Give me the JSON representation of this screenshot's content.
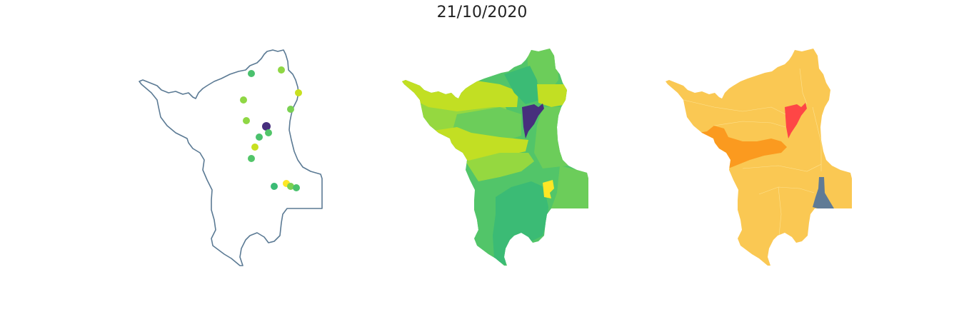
{
  "title": "21/10/2020",
  "panels": [
    {
      "name": "points-map",
      "outline_color": "#5b7a94",
      "points": [
        {
          "color": "#4ac16d"
        },
        {
          "color": "#8fd744"
        },
        {
          "color": "#8fd744"
        },
        {
          "color": "#c8e020"
        },
        {
          "color": "#7ad151"
        },
        {
          "color": "#8fd744"
        },
        {
          "color": "#472f7d"
        },
        {
          "color": "#52c569"
        },
        {
          "color": "#4ac16d"
        },
        {
          "color": "#c8e020"
        },
        {
          "color": "#52c569"
        },
        {
          "color": "#3bbb75"
        },
        {
          "color": "#fde725"
        },
        {
          "color": "#7ad151"
        },
        {
          "color": "#4ac16d"
        }
      ]
    },
    {
      "name": "viridis-choropleth",
      "palette": [
        "#472f7d",
        "#3bbb75",
        "#52c569",
        "#6ccd5a",
        "#95d840",
        "#c2df23",
        "#fde725"
      ]
    },
    {
      "name": "alert-choropleth",
      "palette": [
        "#fac853",
        "#fb9a1f",
        "#fe4646",
        "#5f7b96"
      ]
    }
  ]
}
